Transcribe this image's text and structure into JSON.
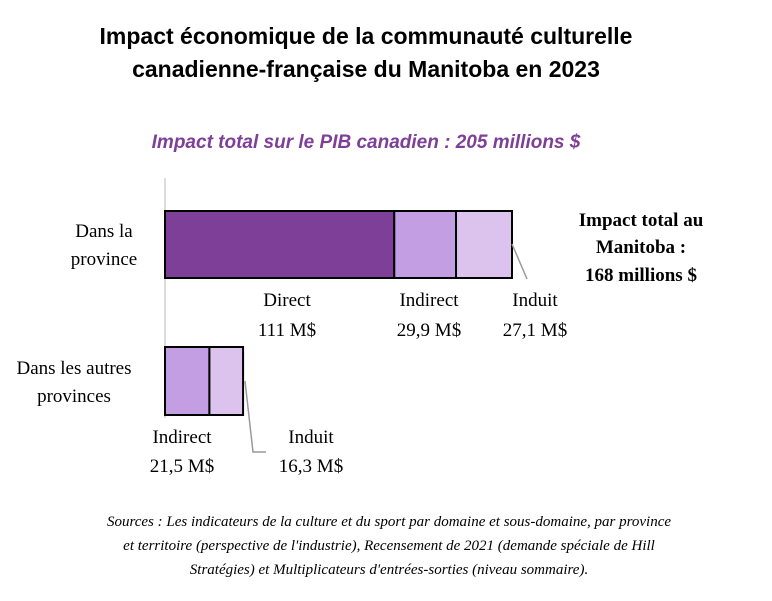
{
  "chart_data": {
    "type": "bar",
    "orientation": "horizontal",
    "stacked": true,
    "title": [
      "Impact économique de la communauté culturelle",
      "canadienne-française du Manitoba en 2023"
    ],
    "subtitle": "Impact total sur le PIB canadien : 205 millions $",
    "categories": [
      {
        "name": "Dans la province",
        "lines": [
          "Dans la",
          "province"
        ]
      },
      {
        "name": "Dans les autres provinces",
        "lines": [
          "Dans les autres",
          "provinces"
        ]
      }
    ],
    "series": [
      {
        "name": "Direct",
        "values": [
          111,
          0
        ],
        "value_labels": [
          "111 M$",
          ""
        ],
        "color": "#7e3f98"
      },
      {
        "name": "Indirect",
        "values": [
          29.9,
          21.5
        ],
        "value_labels": [
          "29,9 M$",
          "21,5 M$"
        ],
        "color": "#c49ee3"
      },
      {
        "name": "Induit",
        "values": [
          27.1,
          16.3
        ],
        "value_labels": [
          "27,1 M$",
          "16,3 M$"
        ],
        "color": "#dcc3ee"
      }
    ],
    "xlim": [
      0,
      168
    ],
    "grid": false,
    "legend": "none",
    "annotation": {
      "lines": [
        "Impact total au",
        "Manitoba :",
        "168 millions $"
      ]
    },
    "subtitle_color": "#7e3f98"
  },
  "sources": [
    "Sources : Les indicateurs de la culture et du sport par domaine et sous-domaine, par province",
    "et territoire (perspective de l'industrie), Recensement de 2021 (demande spéciale de Hill",
    "Stratégies) et Multiplicateurs d'entrées-sorties (niveau sommaire)."
  ]
}
